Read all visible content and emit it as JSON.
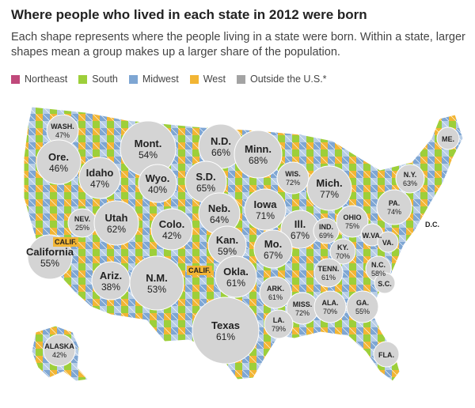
{
  "title": "Where people who lived in each state in 2012 were born",
  "subtitle": "Each shape represents where the people living in a state were born. Within a state, larger shapes mean a group makes up a larger share of the population.",
  "legend": [
    {
      "label": "Northeast",
      "color": "#c0497b"
    },
    {
      "label": "South",
      "color": "#9dcf3a"
    },
    {
      "label": "Midwest",
      "color": "#7ea6d3"
    },
    {
      "label": "West",
      "color": "#f2b534"
    },
    {
      "label": "Outside the U.S.*",
      "color": "#a3a3a3"
    }
  ],
  "states": [
    {
      "abbr": "WASH.",
      "pct": "47%"
    },
    {
      "abbr": "Ore.",
      "pct": "46%"
    },
    {
      "abbr": "Idaho",
      "pct": "47%"
    },
    {
      "abbr": "Mont.",
      "pct": "54%"
    },
    {
      "abbr": "Wyo.",
      "pct": "40%"
    },
    {
      "abbr": "N.D.",
      "pct": "66%"
    },
    {
      "abbr": "Minn.",
      "pct": "68%"
    },
    {
      "abbr": "S.D.",
      "pct": "65%"
    },
    {
      "abbr": "WIS.",
      "pct": "72%"
    },
    {
      "abbr": "Mich.",
      "pct": "77%"
    },
    {
      "abbr": "ME.",
      "pct": ""
    },
    {
      "abbr": "N.Y.",
      "pct": "63%"
    },
    {
      "abbr": "NEV.",
      "pct": "25%"
    },
    {
      "abbr": "Utah",
      "pct": "62%"
    },
    {
      "abbr": "Colo.",
      "pct": "42%"
    },
    {
      "abbr": "Neb.",
      "pct": "64%"
    },
    {
      "abbr": "Iowa",
      "pct": "71%"
    },
    {
      "abbr": "Ill.",
      "pct": "67%"
    },
    {
      "abbr": "IND.",
      "pct": "69%"
    },
    {
      "abbr": "OHIO",
      "pct": "75%"
    },
    {
      "abbr": "PA.",
      "pct": "74%"
    },
    {
      "abbr": "California",
      "pct": "55%"
    },
    {
      "abbr": "Kan.",
      "pct": "59%"
    },
    {
      "abbr": "Mo.",
      "pct": "67%"
    },
    {
      "abbr": "KY.",
      "pct": "70%"
    },
    {
      "abbr": "W.VA.",
      "pct": ""
    },
    {
      "abbr": "VA.",
      "pct": ""
    },
    {
      "abbr": "D.C.",
      "pct": ""
    },
    {
      "abbr": "Ariz.",
      "pct": "38%"
    },
    {
      "abbr": "N.M.",
      "pct": "53%"
    },
    {
      "abbr": "Okla.",
      "pct": "61%"
    },
    {
      "abbr": "TENN.",
      "pct": "61%"
    },
    {
      "abbr": "N.C.",
      "pct": "58%"
    },
    {
      "abbr": "S.C.",
      "pct": ""
    },
    {
      "abbr": "ARK.",
      "pct": "61%"
    },
    {
      "abbr": "MISS.",
      "pct": "72%"
    },
    {
      "abbr": "ALA.",
      "pct": "70%"
    },
    {
      "abbr": "GA.",
      "pct": "55%"
    },
    {
      "abbr": "Texas",
      "pct": "61%"
    },
    {
      "abbr": "LA.",
      "pct": "79%"
    },
    {
      "abbr": "FLA.",
      "pct": ""
    },
    {
      "abbr": "ALASKA",
      "pct": "42%"
    }
  ],
  "inset_labels": [
    "CALIF.",
    "CALIF."
  ]
}
